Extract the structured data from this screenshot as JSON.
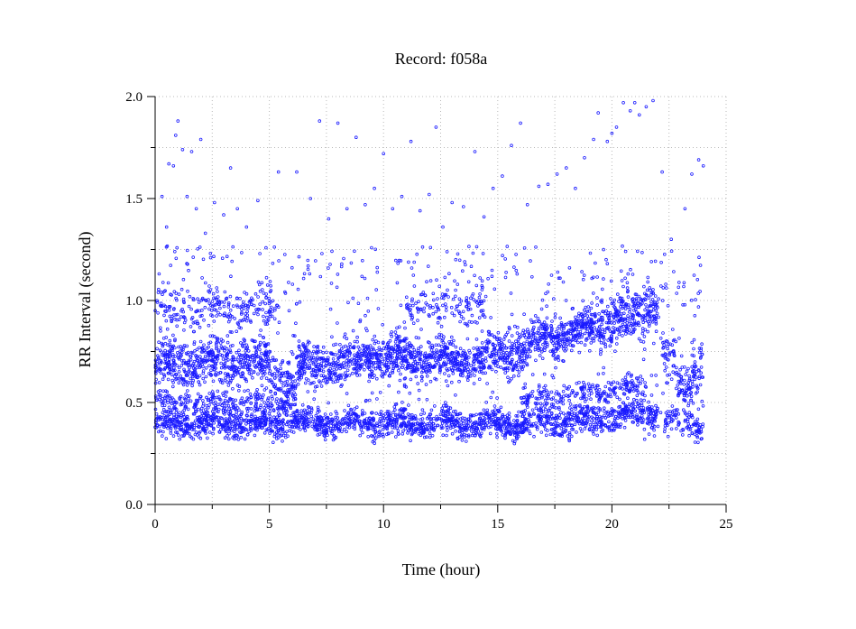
{
  "chart_data": {
    "type": "scatter",
    "title": "Record:  f058a",
    "xlabel": "Time (hour)",
    "ylabel": "RR Interval (second)",
    "xlim": [
      0,
      25
    ],
    "ylim": [
      0,
      2.0
    ],
    "x_ticks": [
      "0",
      "5",
      "10",
      "15",
      "20",
      "25"
    ],
    "x_tick_values": [
      0,
      5,
      10,
      15,
      20,
      25
    ],
    "y_ticks": [
      "0.0",
      "0.5",
      "1.0",
      "1.5",
      "2.0"
    ],
    "y_tick_values": [
      0,
      0.5,
      1.0,
      1.5,
      2.0
    ],
    "grid": true,
    "marker_color": "#1a1aff",
    "series_description": "RR interval samples over ~24 h; main band ~0.6-0.8 s drifting up to ~1.0 s near hour 21, secondary band ~0.35-0.45 s, sparse outliers up to ~2.0 s",
    "bands": [
      {
        "x": [
          0,
          5
        ],
        "center": [
          0.68,
          0.7
        ],
        "spread": 0.06,
        "density": 1.0
      },
      {
        "x": [
          5,
          6.2
        ],
        "center": [
          0.65,
          0.58
        ],
        "spread": 0.06,
        "density": 0.8
      },
      {
        "x": [
          6.2,
          9.0
        ],
        "center": [
          0.68,
          0.7
        ],
        "spread": 0.06,
        "density": 1.0
      },
      {
        "x": [
          9.0,
          14.5
        ],
        "center": [
          0.73,
          0.7
        ],
        "spread": 0.05,
        "density": 1.0
      },
      {
        "x": [
          14.5,
          16.5
        ],
        "center": [
          0.72,
          0.78
        ],
        "spread": 0.06,
        "density": 1.0
      },
      {
        "x": [
          16.5,
          19.5
        ],
        "center": [
          0.8,
          0.88
        ],
        "spread": 0.05,
        "density": 1.0
      },
      {
        "x": [
          19.5,
          22.0
        ],
        "center": [
          0.88,
          0.98
        ],
        "spread": 0.07,
        "density": 1.0
      },
      {
        "x": [
          22.2,
          22.8
        ],
        "center": [
          0.75,
          0.7
        ],
        "spread": 0.08,
        "density": 0.6
      },
      {
        "x": [
          22.8,
          23.5
        ],
        "center": [
          0.58,
          0.58
        ],
        "spread": 0.05,
        "density": 0.8
      },
      {
        "x": [
          23.5,
          24.0
        ],
        "center": [
          0.65,
          0.72
        ],
        "spread": 0.08,
        "density": 0.8
      },
      {
        "x": [
          0,
          16.0
        ],
        "center": [
          0.4,
          0.4
        ],
        "spread": 0.035,
        "density": 0.8
      },
      {
        "x": [
          16.0,
          22.0
        ],
        "center": [
          0.4,
          0.45
        ],
        "spread": 0.04,
        "density": 0.8
      },
      {
        "x": [
          22.3,
          24.0
        ],
        "center": [
          0.4,
          0.4
        ],
        "spread": 0.035,
        "density": 0.5
      },
      {
        "x": [
          0,
          5.5
        ],
        "center": [
          0.96,
          0.96
        ],
        "spread": 0.05,
        "density": 0.35
      },
      {
        "x": [
          11.0,
          14.5
        ],
        "center": [
          0.98,
          0.98
        ],
        "spread": 0.05,
        "density": 0.3
      },
      {
        "x": [
          0,
          6.0
        ],
        "center": [
          0.5,
          0.5
        ],
        "spread": 0.03,
        "density": 0.35
      },
      {
        "x": [
          16.0,
          21.5
        ],
        "center": [
          0.52,
          0.58
        ],
        "spread": 0.03,
        "density": 0.35
      }
    ],
    "outliers": [
      [
        0.3,
        1.51
      ],
      [
        0.5,
        1.36
      ],
      [
        0.6,
        1.67
      ],
      [
        0.8,
        1.66
      ],
      [
        0.9,
        1.81
      ],
      [
        1.0,
        1.88
      ],
      [
        1.2,
        1.74
      ],
      [
        1.4,
        1.51
      ],
      [
        1.6,
        1.73
      ],
      [
        1.8,
        1.45
      ],
      [
        2.0,
        1.79
      ],
      [
        2.2,
        1.33
      ],
      [
        2.6,
        1.48
      ],
      [
        3.0,
        1.42
      ],
      [
        3.3,
        1.65
      ],
      [
        3.6,
        1.45
      ],
      [
        4.0,
        1.36
      ],
      [
        4.5,
        1.49
      ],
      [
        5.4,
        1.63
      ],
      [
        6.2,
        1.63
      ],
      [
        6.8,
        1.5
      ],
      [
        7.2,
        1.88
      ],
      [
        7.6,
        1.4
      ],
      [
        8.0,
        1.87
      ],
      [
        8.4,
        1.45
      ],
      [
        8.8,
        1.8
      ],
      [
        9.2,
        1.47
      ],
      [
        9.6,
        1.55
      ],
      [
        10.0,
        1.72
      ],
      [
        10.4,
        1.45
      ],
      [
        10.8,
        1.51
      ],
      [
        11.2,
        1.78
      ],
      [
        11.6,
        1.44
      ],
      [
        12.0,
        1.52
      ],
      [
        12.3,
        1.85
      ],
      [
        12.6,
        1.36
      ],
      [
        13.0,
        1.48
      ],
      [
        13.5,
        1.46
      ],
      [
        14.0,
        1.73
      ],
      [
        14.4,
        1.41
      ],
      [
        14.8,
        1.55
      ],
      [
        15.2,
        1.61
      ],
      [
        15.6,
        1.76
      ],
      [
        16.0,
        1.87
      ],
      [
        16.3,
        1.47
      ],
      [
        16.8,
        1.56
      ],
      [
        17.2,
        1.57
      ],
      [
        17.6,
        1.62
      ],
      [
        18.0,
        1.65
      ],
      [
        18.4,
        1.55
      ],
      [
        18.8,
        1.7
      ],
      [
        19.2,
        1.79
      ],
      [
        19.4,
        1.92
      ],
      [
        19.8,
        1.78
      ],
      [
        20.0,
        1.82
      ],
      [
        20.2,
        1.85
      ],
      [
        20.5,
        1.97
      ],
      [
        20.8,
        1.93
      ],
      [
        21.0,
        1.97
      ],
      [
        21.2,
        1.91
      ],
      [
        21.5,
        1.95
      ],
      [
        21.8,
        1.98
      ],
      [
        22.2,
        1.63
      ],
      [
        22.6,
        1.3
      ],
      [
        23.2,
        1.45
      ],
      [
        23.5,
        1.62
      ],
      [
        23.8,
        1.69
      ],
      [
        24.0,
        1.66
      ]
    ]
  }
}
